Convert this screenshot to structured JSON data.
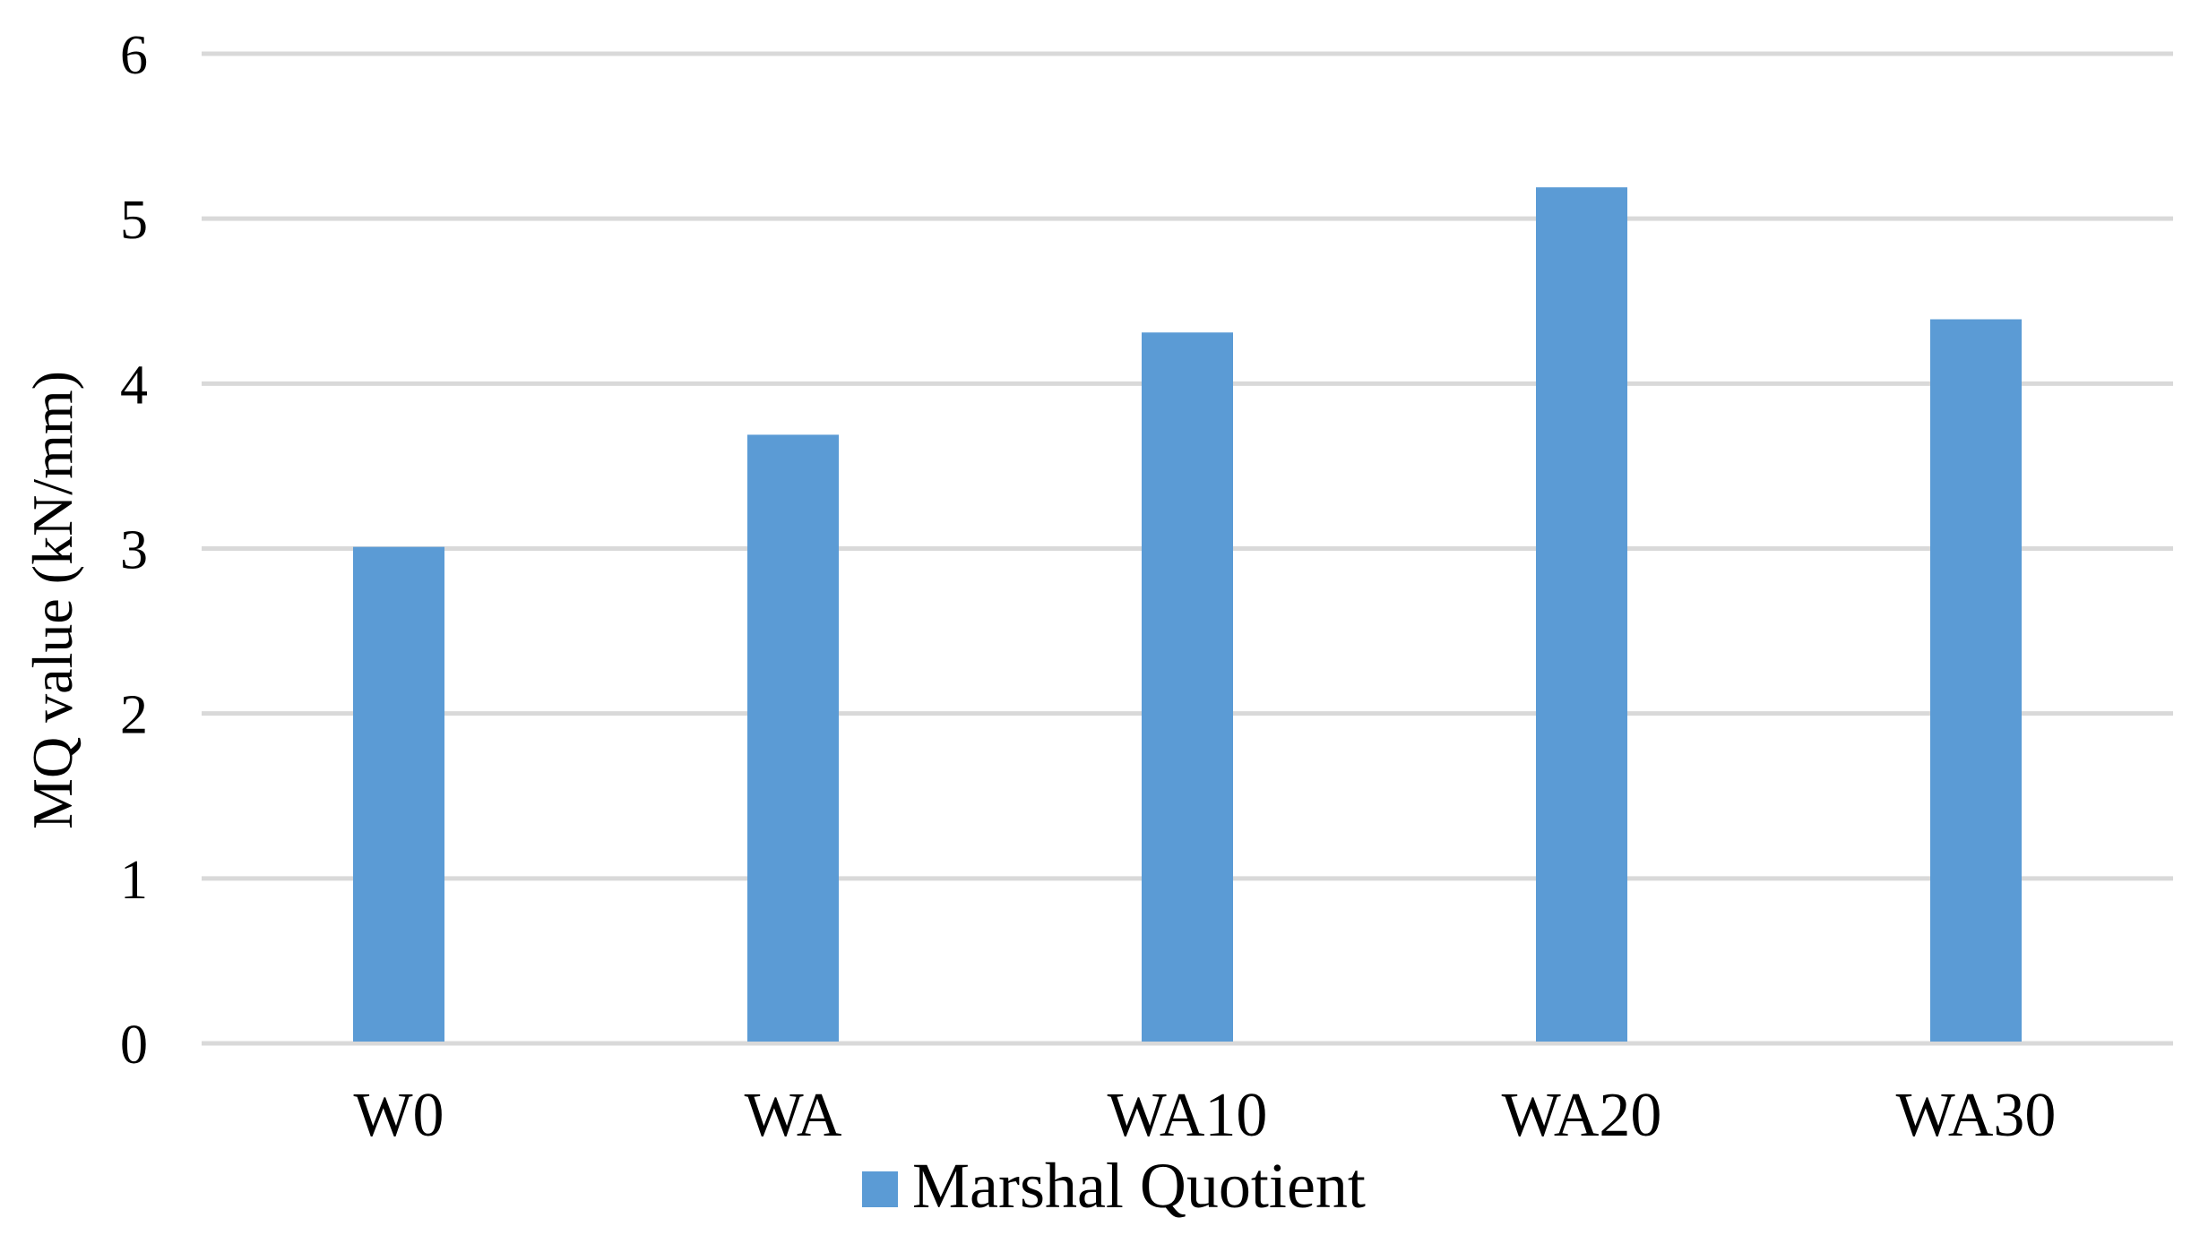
{
  "colors": {
    "bar": "#5b9bd5",
    "grid": "#d9d9d9",
    "background": "#ffffff",
    "text": "#000000"
  },
  "chart_data": {
    "type": "bar",
    "title": "",
    "xlabel": "",
    "ylabel": "MQ value (kN/mm)",
    "categories": [
      "W0",
      "WA",
      "WA10",
      "WA20",
      "WA30"
    ],
    "series": [
      {
        "name": "Marshal Quotient",
        "values": [
          3.01,
          3.69,
          4.31,
          5.19,
          4.39
        ]
      }
    ],
    "ylim": [
      0,
      6
    ],
    "yticks": [
      "0",
      "1",
      "2",
      "3",
      "4",
      "5",
      "6"
    ],
    "grid": true,
    "legend": "bottom-center"
  }
}
